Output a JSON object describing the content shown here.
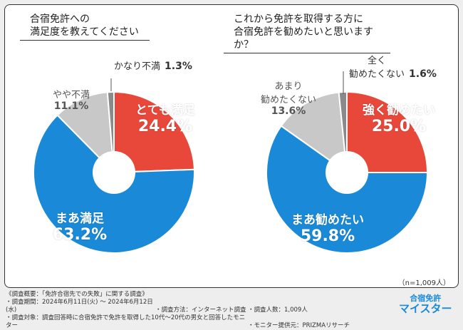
{
  "chart_data": [
    {
      "type": "pie",
      "title": "合宿免許への\n満足度を教えてください",
      "slices": [
        {
          "label": "とても満足",
          "value": 24.4,
          "color": "#e8483a"
        },
        {
          "label": "まあ満足",
          "value": 63.2,
          "color": "#1a8ad8"
        },
        {
          "label": "やや不満",
          "value": 11.1,
          "color": "#c8c8c8"
        },
        {
          "label": "かなり不満",
          "value": 1.3,
          "color": "#8a8a8a"
        }
      ]
    },
    {
      "type": "pie",
      "title": "これから免許を取得する方に\n合宿免許を勧めたいと思いますか？",
      "slices": [
        {
          "label": "強く勧めたい",
          "value": 25.0,
          "color": "#e8483a"
        },
        {
          "label": "まあ勧めたい",
          "value": 59.8,
          "color": "#1a8ad8"
        },
        {
          "label": "あまり\n勧めたくない",
          "value": 13.6,
          "color": "#c8c8c8"
        },
        {
          "label": "全く\n勧めたくない",
          "value": 1.6,
          "color": "#8a8a8a"
        }
      ]
    }
  ],
  "sample": "（n=1,009人）",
  "footer": {
    "line1": "《調査概要：「免許合宿先での失敗」に関する調査》",
    "period": "・調査期間：2024年6月11日(火) ～ 2024年6月12日(水)",
    "method": "・調査方法：インターネット調査",
    "count": "・調査人数：1,009人",
    "target": "・調査対象：調査回答時に合宿免許で免許を取得した10代～20代の男女と回答したモニター",
    "provider": "・モニター提供元：PRIZMAリサーチ"
  },
  "logo": {
    "top": "合宿免許",
    "bottom": "マイスター"
  }
}
